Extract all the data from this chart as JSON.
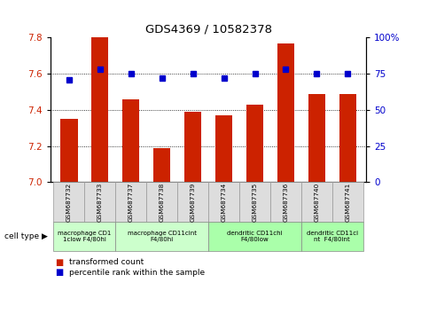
{
  "title": "GDS4369 / 10582378",
  "samples": [
    "GSM687732",
    "GSM687733",
    "GSM687737",
    "GSM687738",
    "GSM687739",
    "GSM687734",
    "GSM687735",
    "GSM687736",
    "GSM687740",
    "GSM687741"
  ],
  "bar_values": [
    7.35,
    7.8,
    7.46,
    7.19,
    7.39,
    7.37,
    7.43,
    7.77,
    7.49,
    7.49
  ],
  "percentile_values": [
    71,
    78,
    75,
    72,
    75,
    72,
    75,
    78,
    75,
    75
  ],
  "bar_color": "#cc2200",
  "dot_color": "#0000cc",
  "ylim_left": [
    7.0,
    7.8
  ],
  "ylim_right": [
    0,
    100
  ],
  "yticks_left": [
    7.0,
    7.2,
    7.4,
    7.6,
    7.8
  ],
  "yticks_right": [
    0,
    25,
    50,
    75,
    100
  ],
  "grid_values": [
    7.2,
    7.4,
    7.6
  ],
  "cell_type_groups": [
    {
      "label": "macrophage CD1\n1clow F4/80hi",
      "start": 0,
      "end": 2,
      "color": "#ccffcc"
    },
    {
      "label": "macrophage CD11cint\nF4/80hi",
      "start": 2,
      "end": 5,
      "color": "#ccffcc"
    },
    {
      "label": "dendritic CD11chi\nF4/80low",
      "start": 5,
      "end": 8,
      "color": "#aaffaa"
    },
    {
      "label": "dendritic CD11ci\nnt  F4/80int",
      "start": 8,
      "end": 10,
      "color": "#aaffaa"
    }
  ],
  "cell_type_label": "cell type",
  "legend_bar_label": "transformed count",
  "legend_dot_label": "percentile rank within the sample",
  "background_color": "#ffffff",
  "tick_label_color_left": "#cc2200",
  "tick_label_color_right": "#0000cc",
  "n_samples": 10
}
